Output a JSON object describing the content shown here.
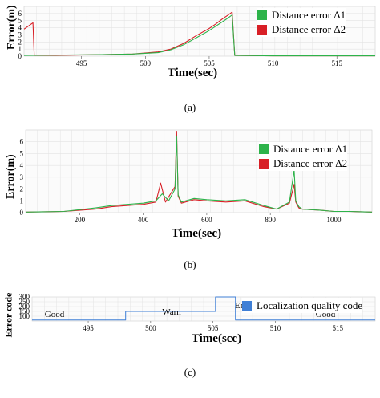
{
  "colors": {
    "green": "#2db34a",
    "red": "#d81f26",
    "blue": "#3f7fd6",
    "grid": "#e3e3e3"
  },
  "chart_data": [
    {
      "type": "line",
      "caption": "(a)",
      "xlabel": "Time(sec)",
      "ylabel": "Error(m)",
      "xlim": [
        490.5,
        518
      ],
      "ylim": [
        0,
        7
      ],
      "xticks": [
        "495",
        "500",
        "505",
        "510",
        "515"
      ],
      "yticks": [
        "0",
        "1",
        "2",
        "3",
        "4",
        "5",
        "6"
      ],
      "grid": true,
      "legend_position": "top-right",
      "series": [
        {
          "name": "Distance error Δ1",
          "color": "green",
          "x": [
            490.5,
            493,
            496,
            499,
            501,
            502,
            503,
            504,
            505,
            505.5,
            506,
            506.5,
            506.8,
            507,
            510,
            514,
            518
          ],
          "y": [
            0.1,
            0.15,
            0.2,
            0.3,
            0.5,
            0.9,
            1.6,
            2.6,
            3.6,
            4.2,
            4.8,
            5.4,
            5.8,
            0.1,
            0.05,
            0.05,
            0.05
          ]
        },
        {
          "name": "Distance error Δ2",
          "color": "red",
          "x": [
            490.5,
            491.2,
            491.3,
            493,
            496,
            499,
            501,
            502,
            503,
            504,
            505,
            505.5,
            506,
            506.5,
            506.8,
            507,
            510,
            514,
            518
          ],
          "y": [
            3.8,
            4.7,
            0.1,
            0.1,
            0.2,
            0.3,
            0.6,
            1.0,
            1.8,
            2.9,
            3.9,
            4.5,
            5.2,
            5.8,
            6.2,
            0.1,
            0.05,
            0.05,
            0.05
          ]
        }
      ]
    },
    {
      "type": "line",
      "caption": "(b)",
      "xlabel": "Time(sec)",
      "ylabel": "Error(m)",
      "xlim": [
        30,
        1120
      ],
      "ylim": [
        0,
        7
      ],
      "xticks": [
        "200",
        "400",
        "600",
        "800",
        "1000"
      ],
      "yticks": [
        "0",
        "1",
        "2",
        "3",
        "4",
        "5",
        "6"
      ],
      "grid": true,
      "legend_position": "top-right",
      "series": [
        {
          "name": "Distance error Δ1",
          "color": "green",
          "x": [
            30,
            150,
            250,
            300,
            400,
            440,
            460,
            480,
            500,
            505,
            510,
            520,
            560,
            600,
            660,
            720,
            780,
            820,
            860,
            875,
            880,
            890,
            900,
            960,
            1000,
            1050,
            1120
          ],
          "y": [
            0.05,
            0.1,
            0.4,
            0.6,
            0.8,
            1.0,
            1.6,
            1.0,
            2.0,
            6.5,
            1.5,
            0.9,
            1.2,
            1.1,
            1.0,
            1.1,
            0.6,
            0.3,
            0.9,
            3.6,
            1.0,
            0.5,
            0.3,
            0.2,
            0.1,
            0.1,
            0.05
          ]
        },
        {
          "name": "Distance error Δ2",
          "color": "red",
          "x": [
            30,
            150,
            250,
            300,
            400,
            440,
            455,
            470,
            500,
            505,
            510,
            520,
            560,
            600,
            660,
            720,
            780,
            820,
            860,
            875,
            880,
            890,
            900,
            960,
            1000,
            1050,
            1120
          ],
          "y": [
            0.05,
            0.1,
            0.3,
            0.5,
            0.7,
            0.9,
            2.5,
            0.9,
            2.2,
            6.9,
            1.4,
            0.8,
            1.1,
            1.0,
            0.9,
            1.0,
            0.5,
            0.3,
            0.8,
            2.4,
            0.9,
            0.4,
            0.3,
            0.2,
            0.1,
            0.1,
            0.05
          ]
        }
      ]
    },
    {
      "type": "line",
      "caption": "(c)",
      "xlabel": "Time(scc)",
      "ylabel": "Error code",
      "xlim": [
        490.5,
        518
      ],
      "ylim": [
        50,
        300
      ],
      "xticks": [
        "495",
        "500",
        "505",
        "510",
        "515"
      ],
      "yticks": [
        "100",
        "150",
        "200",
        "250",
        "300"
      ],
      "grid": true,
      "legend_position": "top-right",
      "annotations": [
        "Good",
        "Warn",
        "Emer.",
        "Good"
      ],
      "series": [
        {
          "name": "Localization quality code",
          "color": "blue",
          "x": [
            490.5,
            498,
            498,
            505.2,
            505.2,
            506.8,
            506.8,
            518
          ],
          "y": [
            60,
            60,
            150,
            150,
            310,
            310,
            60,
            60
          ]
        }
      ]
    }
  ]
}
